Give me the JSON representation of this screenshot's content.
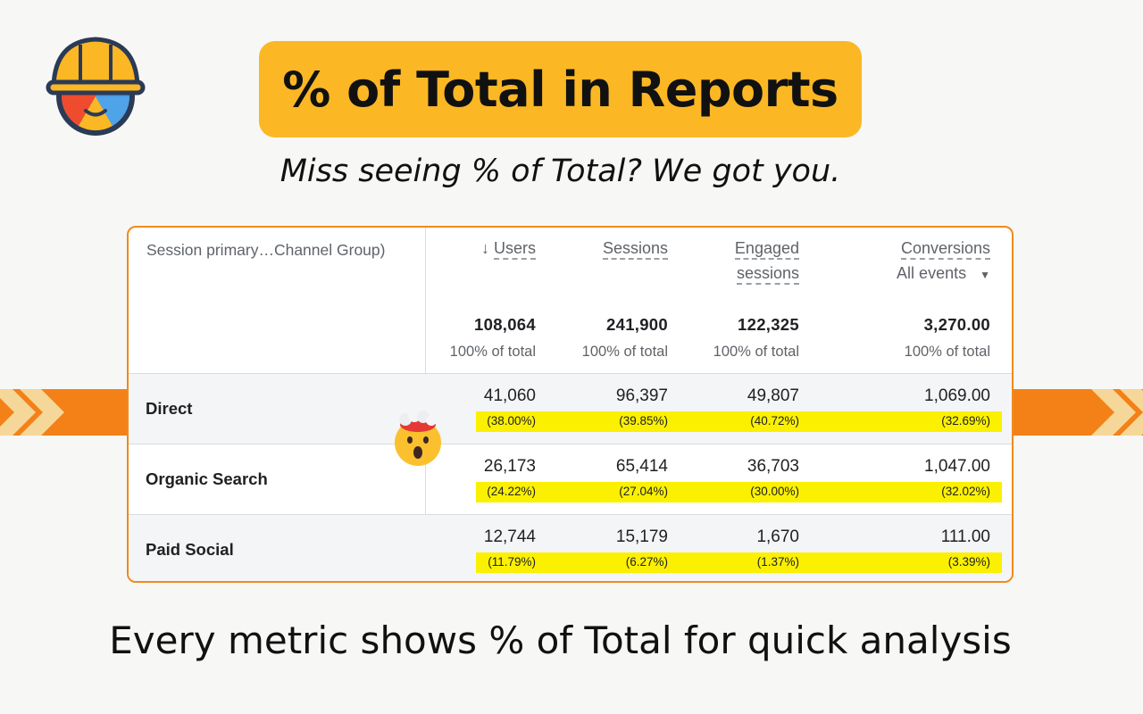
{
  "title": "% of Total in Reports",
  "subtitle": "Miss seeing % of Total? We got you.",
  "footer": "Every metric shows % of Total for quick analysis",
  "colors": {
    "accent": "#fbb724",
    "border": "#f08a1c",
    "highlight": "#fbf000"
  },
  "table": {
    "dimension_header": "Session primary…Channel Group)",
    "sort_icon": "arrow-down-icon",
    "metrics": [
      {
        "label": "Users",
        "total": "108,064",
        "total_pct": "100% of total"
      },
      {
        "label": "Sessions",
        "total": "241,900",
        "total_pct": "100% of total"
      },
      {
        "label_line1": "Engaged",
        "label_line2": "sessions",
        "total": "122,325",
        "total_pct": "100% of total"
      },
      {
        "label": "Conversions",
        "sub_label": "All events",
        "total": "3,270.00",
        "total_pct": "100% of total"
      }
    ],
    "rows": [
      {
        "label": "Direct",
        "values": [
          "41,060",
          "96,397",
          "49,807",
          "1,069.00"
        ],
        "pcts": [
          "(38.00%)",
          "(39.85%)",
          "(40.72%)",
          "(32.69%)"
        ]
      },
      {
        "label": "Organic Search",
        "values": [
          "26,173",
          "65,414",
          "36,703",
          "1,047.00"
        ],
        "pcts": [
          "(24.22%)",
          "(27.04%)",
          "(30.00%)",
          "(32.02%)"
        ]
      },
      {
        "label": "Paid Social",
        "values": [
          "12,744",
          "15,179",
          "1,670",
          "111.00"
        ],
        "pcts": [
          "(11.79%)",
          "(6.27%)",
          "(1.37%)",
          "(3.39%)"
        ]
      }
    ]
  }
}
